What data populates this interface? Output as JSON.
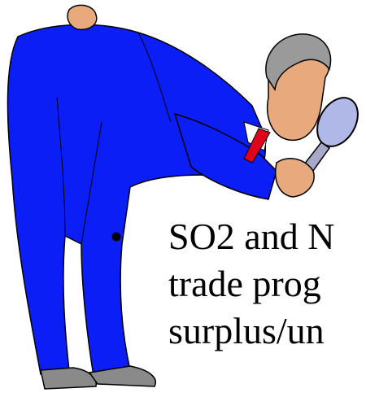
{
  "slide": {
    "bullet": "•",
    "lines": [
      "SO2 and N",
      "trade prog",
      "surplus/un"
    ]
  }
}
